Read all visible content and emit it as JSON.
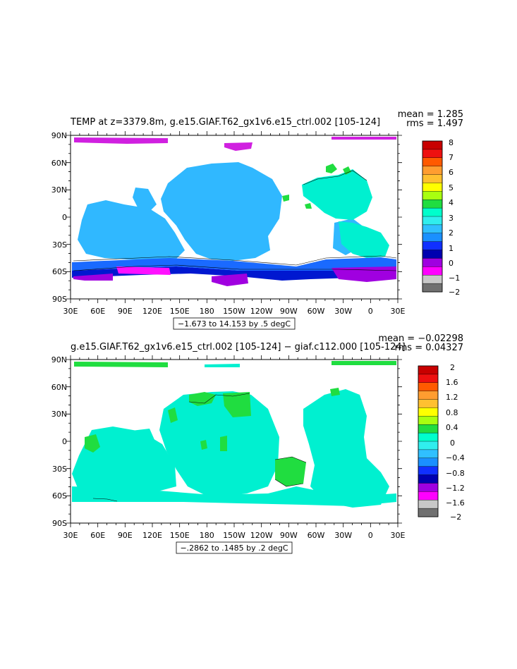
{
  "panels": [
    {
      "title": "TEMP at z=3379.8m, g.e15.GIAF.T62_gx1v6.e15_ctrl.002  [105-124]",
      "stats": [
        "mean = 1.285",
        "rms = 1.497"
      ],
      "caption": "−1.673 to 14.153 by .5 degC",
      "lat_labels": [
        "90N",
        "60N",
        "30N",
        "0",
        "30S",
        "60S",
        "90S"
      ],
      "lon_labels": [
        "30E",
        "60E",
        "90E",
        "120E",
        "150E",
        "180",
        "150W",
        "120W",
        "90W",
        "60W",
        "30W",
        "0",
        "30E"
      ],
      "colorbar": {
        "labels": [
          "8",
          "7",
          "6",
          "5",
          "4",
          "3",
          "2",
          "1",
          "0",
          "−1",
          "−2"
        ],
        "colors": [
          "#c80000",
          "#ee1010",
          "#ff5a00",
          "#ff9d30",
          "#ffc030",
          "#ffff00",
          "#a8ff10",
          "#20dd40",
          "#00ffcc",
          "#30eeee",
          "#30c0ff",
          "#1a90ff",
          "#1030ff",
          "#0000b0",
          "#a000e0",
          "#ff00ff",
          "#c8c8c8",
          "#707070"
        ]
      }
    },
    {
      "title": "g.e15.GIAF.T62_gx1v6.e15_ctrl.002  [105-124]  −  giaf.c112.000  [105-124]",
      "stats": [
        "mean = −0.02298",
        "rms = 0.04327"
      ],
      "caption": "−.2862 to .1485 by .2 degC",
      "lat_labels": [
        "90N",
        "60N",
        "30N",
        "0",
        "30S",
        "60S",
        "90S"
      ],
      "lon_labels": [
        "30E",
        "60E",
        "90E",
        "120E",
        "150E",
        "180",
        "150W",
        "120W",
        "90W",
        "60W",
        "30W",
        "0",
        "30E"
      ],
      "colorbar": {
        "labels": [
          "2",
          "1.6",
          "1.2",
          "0.8",
          "0.4",
          "0",
          "−0.4",
          "−0.8",
          "−1.2",
          "−1.6",
          "−2"
        ],
        "colors": [
          "#c80000",
          "#ee1010",
          "#ff5a00",
          "#ff9d30",
          "#ffc030",
          "#ffff00",
          "#a8ff10",
          "#20dd40",
          "#00ffcc",
          "#30eeee",
          "#30c0ff",
          "#1a90ff",
          "#1030ff",
          "#0000b0",
          "#a000e0",
          "#ff00ff",
          "#c8c8c8",
          "#707070"
        ]
      }
    }
  ]
}
